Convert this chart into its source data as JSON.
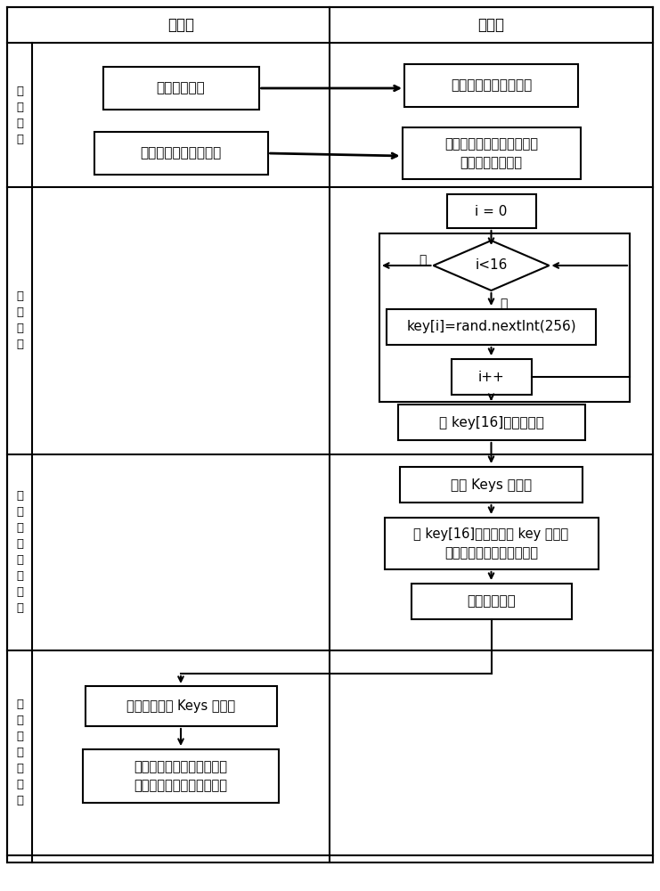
{
  "bg_color": "#ffffff",
  "col_headers": [
    "客户端",
    "服务端"
  ],
  "row_labels": [
    "建\n立\n连\n接",
    "生\n成\n密\n鑰",
    "发\n送\n密\n鑰\n给\n客\n户\n端",
    "客\n户\n端\n保\n存\n密\n鑰"
  ],
  "box1_text": "请求建立连接",
  "box2_text": "验证请求，并建立连接",
  "box3_text": "连接后，请求会话密鑰",
  "box4_text": "生成混淡因子，随机选择加\n密算法，生成密鑰",
  "i0_text": "i = 0",
  "diamond_text": "i<16",
  "no_text": "否",
  "yes_text": "是",
  "key_text": "key[i]=rand.nextInt(256)",
  "ipp_text": "i++",
  "save_text": "将 key[16]保存到会话",
  "ckeys_text": "创建 Keys 消息体",
  "fill_text": "将 key[16]填充消息体 key 区间，\n填充算法编码，并混淡处理",
  "send_text": "发送给客户端",
  "recv_text": "客户端接收到 Keys 消息体",
  "restore_text": "客户端还原混淡数据，提取\n加密算法与会话密鑰，并保"
}
